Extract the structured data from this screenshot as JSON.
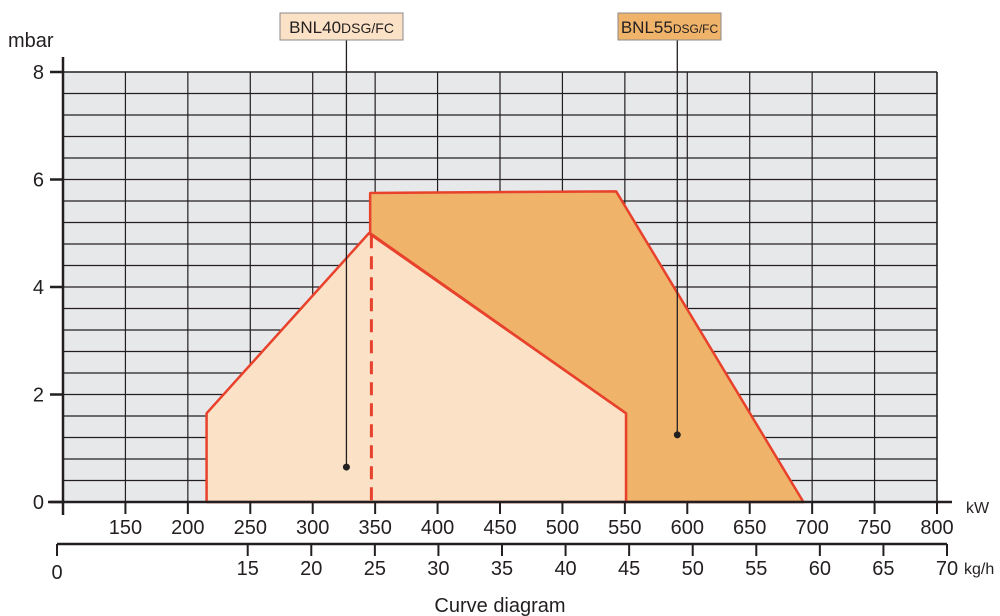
{
  "chart_data": {
    "type": "area",
    "title": "Curve diagram",
    "ylabel": "mbar",
    "x_unit_kw": "kW",
    "x_unit_kgh": "kg/h",
    "ylim": [
      0,
      8
    ],
    "y_ticks": [
      0,
      2,
      4,
      6,
      8
    ],
    "x_kw_ticks": [
      150,
      200,
      250,
      300,
      350,
      400,
      450,
      500,
      550,
      600,
      650,
      700,
      750,
      800
    ],
    "x_kgh_ticks": [
      15,
      20,
      25,
      30,
      35,
      40,
      45,
      50,
      55,
      60,
      65,
      70
    ],
    "x_kgh_origin_label": "0",
    "grid": true,
    "series": [
      {
        "name": "BNL40",
        "name_suffix": "DSG/FC",
        "color": "#fbe1c6",
        "points": [
          [
            215,
            0
          ],
          [
            215,
            1.65
          ],
          [
            345,
            5.0
          ],
          [
            551,
            1.65
          ],
          [
            551,
            0
          ]
        ],
        "label_anchor": [
          327,
          0.65
        ]
      },
      {
        "name": "BNL55",
        "name_suffix": "DSG/FC",
        "color": "#efb36a",
        "points": [
          [
            346,
            5.0
          ],
          [
            346,
            5.75
          ],
          [
            543,
            5.78
          ],
          [
            693,
            0
          ],
          [
            551,
            0
          ],
          [
            551,
            1.65
          ]
        ],
        "label_anchor": [
          592,
          1.25
        ]
      }
    ],
    "outline_color": "#e8412c",
    "min_output_marker_kw": 347
  }
}
